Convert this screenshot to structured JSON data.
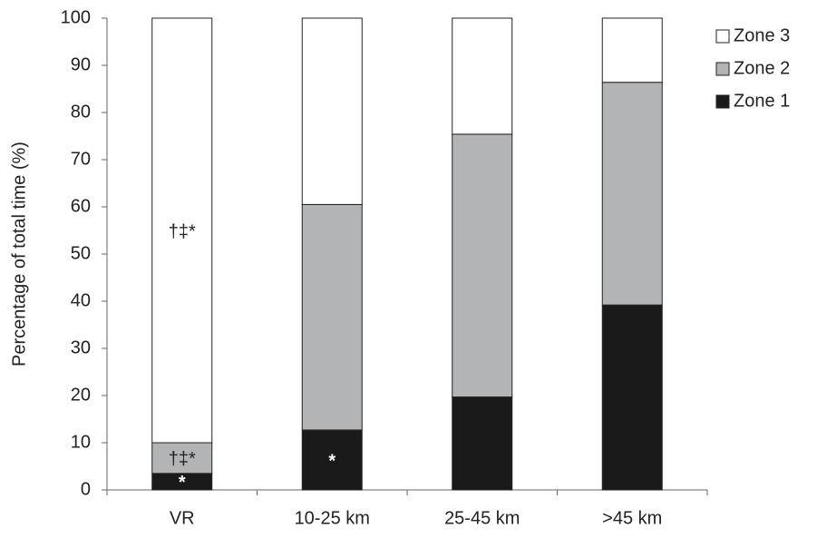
{
  "chart_data": {
    "type": "stacked_bar",
    "y_label": "Percentage of total time (%)",
    "categories": [
      "VR",
      "10-25 km",
      "25-45 km",
      ">45 km"
    ],
    "series": [
      {
        "name": "Zone 1",
        "color": "#1a1a1a",
        "values": [
          3.5,
          12.7,
          19.7,
          39.2
        ],
        "annotations": [
          "*",
          "*",
          null,
          null
        ],
        "annotation_color": "#ffffff"
      },
      {
        "name": "Zone 2",
        "color": "#b3b4b6",
        "values": [
          6.5,
          47.8,
          55.7,
          47.2
        ],
        "annotations": [
          "†‡*",
          null,
          null,
          null
        ],
        "annotation_color": "#222222"
      },
      {
        "name": "Zone 3",
        "color": "#ffffff",
        "values": [
          90,
          39.5,
          24.6,
          13.6
        ],
        "annotations": [
          "†‡*",
          null,
          null,
          null
        ],
        "annotation_color": "#222222"
      }
    ],
    "ylim": [
      0,
      100
    ],
    "yticks": [
      0,
      10,
      20,
      30,
      40,
      50,
      60,
      70,
      80,
      90,
      100
    ],
    "legend": "right"
  }
}
